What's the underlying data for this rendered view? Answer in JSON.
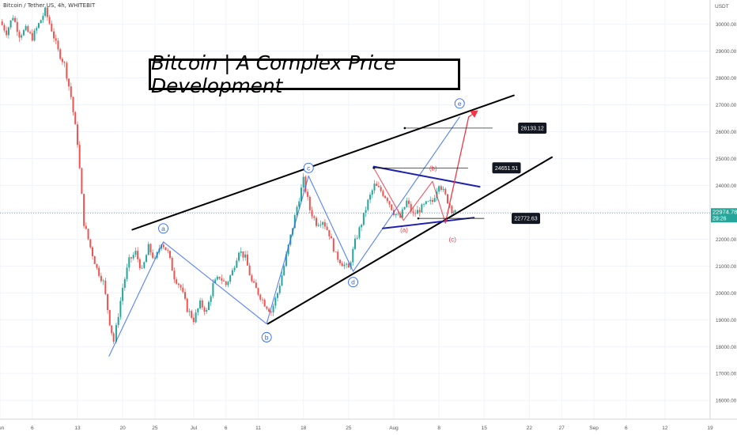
{
  "header": {
    "symbol": "Bitcoin / Tether US, 4h, WHITEBIT",
    "currency": "USDT"
  },
  "title": "Bitcoin | A Complex Price Development",
  "colors": {
    "up": "#26a69a",
    "down": "#ef5350",
    "wave_blue": "#2962ff",
    "channel": "#000000",
    "red_path": "#f23645",
    "navy": "#1e22aa"
  },
  "chart_data": {
    "type": "candlestick",
    "y_ticks": [
      "16000.00",
      "17000.00",
      "18000.00",
      "19000.00",
      "20000.00",
      "21000.00",
      "22000.00",
      "23000.00",
      "24000.00",
      "25000.00",
      "26000.00",
      "27000.00",
      "28000.00",
      "29000.00",
      "30000.00"
    ],
    "x_ticks": [
      {
        "label": "Jun",
        "day": 0
      },
      {
        "label": "6",
        "day": 5
      },
      {
        "label": "13",
        "day": 12
      },
      {
        "label": "20",
        "day": 19
      },
      {
        "label": "25",
        "day": 24
      },
      {
        "label": "Jul",
        "day": 30
      },
      {
        "label": "6",
        "day": 35
      },
      {
        "label": "11",
        "day": 40
      },
      {
        "label": "18",
        "day": 47
      },
      {
        "label": "25",
        "day": 54
      },
      {
        "label": "Aug",
        "day": 61
      },
      {
        "label": "8",
        "day": 68
      },
      {
        "label": "15",
        "day": 75
      },
      {
        "label": "22",
        "day": 82
      },
      {
        "label": "27",
        "day": 87
      },
      {
        "label": "Sep",
        "day": 92
      },
      {
        "label": "6",
        "day": 97
      },
      {
        "label": "12",
        "day": 103
      },
      {
        "label": "19",
        "day": 110
      }
    ],
    "ylim": [
      15300,
      30900
    ],
    "xlim": [
      0,
      110
    ],
    "current_price": {
      "label": "22974.78",
      "timer": "29:26",
      "value": 22974.78
    },
    "price_path": [
      [
        0,
        30100
      ],
      [
        1,
        29700
      ],
      [
        2,
        30300
      ],
      [
        3,
        29600
      ],
      [
        4,
        29800
      ],
      [
        5,
        29500
      ],
      [
        6,
        30000
      ],
      [
        7,
        30500
      ],
      [
        8,
        29800
      ],
      [
        9,
        29000
      ],
      [
        10,
        28500
      ],
      [
        11,
        27300
      ],
      [
        12,
        25600
      ],
      [
        13,
        22600
      ],
      [
        14,
        21700
      ],
      [
        15,
        20900
      ],
      [
        16,
        20400
      ],
      [
        17,
        18900
      ],
      [
        17.6,
        18200
      ],
      [
        18,
        18700
      ],
      [
        19,
        20200
      ],
      [
        20,
        21200
      ],
      [
        21,
        21500
      ],
      [
        22,
        20800
      ],
      [
        23,
        21700
      ],
      [
        24,
        21200
      ],
      [
        25,
        21900
      ],
      [
        26,
        21500
      ],
      [
        27,
        20600
      ],
      [
        28,
        20200
      ],
      [
        29,
        19400
      ],
      [
        30,
        19000
      ],
      [
        31,
        19600
      ],
      [
        32,
        19300
      ],
      [
        33,
        20300
      ],
      [
        34,
        20600
      ],
      [
        35,
        20300
      ],
      [
        36,
        20800
      ],
      [
        37,
        21600
      ],
      [
        38,
        21300
      ],
      [
        39,
        20400
      ],
      [
        40,
        20000
      ],
      [
        41,
        19600
      ],
      [
        42,
        19300
      ],
      [
        43,
        20000
      ],
      [
        44,
        21000
      ],
      [
        45,
        22100
      ],
      [
        46,
        23200
      ],
      [
        47,
        24200
      ],
      [
        48,
        23100
      ],
      [
        49,
        22600
      ],
      [
        50,
        22700
      ],
      [
        51,
        22200
      ],
      [
        52,
        21400
      ],
      [
        53,
        21100
      ],
      [
        54,
        20900
      ],
      [
        55,
        21900
      ],
      [
        56,
        22600
      ],
      [
        57,
        23400
      ],
      [
        58,
        24000
      ],
      [
        59,
        23800
      ],
      [
        60,
        23500
      ],
      [
        61,
        23000
      ],
      [
        62,
        22800
      ],
      [
        63,
        23400
      ],
      [
        64,
        22900
      ],
      [
        65,
        23100
      ],
      [
        66,
        23300
      ],
      [
        67,
        23400
      ],
      [
        68,
        24100
      ],
      [
        69,
        23600
      ],
      [
        70,
        23100
      ],
      [
        70.5,
        22974.78
      ]
    ],
    "wave_labels": [
      {
        "text": "a",
        "day": 25.3,
        "price": 22400,
        "color": "blue"
      },
      {
        "text": "b",
        "day": 41.3,
        "price": 18350,
        "color": "blue"
      },
      {
        "text": "c",
        "day": 47.8,
        "price": 24650,
        "color": "blue"
      },
      {
        "text": "d",
        "day": 54.7,
        "price": 20400,
        "color": "blue"
      },
      {
        "text": "e",
        "day": 71.2,
        "price": 27050,
        "color": "blue"
      },
      {
        "text": "(a)",
        "day": 62.6,
        "price": 22350,
        "color": "red"
      },
      {
        "text": "(b)",
        "day": 67.1,
        "price": 24650,
        "color": "red"
      },
      {
        "text": "(c)",
        "day": 70.1,
        "price": 22000,
        "color": "red"
      }
    ],
    "price_labels": [
      {
        "text": "26133.12",
        "day": 80.5,
        "price": 26133.12
      },
      {
        "text": "24651.51",
        "day": 76.5,
        "price": 24651.51
      },
      {
        "text": "22772.63",
        "day": 79.5,
        "price": 22772.63
      }
    ],
    "channel_upper": [
      [
        20.5,
        22350
      ],
      [
        79.6,
        27350
      ]
    ],
    "channel_lower": [
      [
        41.5,
        18850
      ],
      [
        85.5,
        25050
      ]
    ],
    "blue_path": [
      [
        16.9,
        17650
      ],
      [
        25.3,
        21900
      ],
      [
        41.3,
        18850
      ],
      [
        47.8,
        24350
      ],
      [
        54.7,
        20800
      ],
      [
        71.2,
        26550
      ]
    ],
    "navy_upper": [
      [
        57.9,
        24700
      ],
      [
        74.3,
        23950
      ]
    ],
    "navy_lower": [
      [
        59.3,
        22400
      ],
      [
        73.4,
        22800
      ]
    ],
    "red_abc": [
      [
        57.9,
        24650
      ],
      [
        62.5,
        22700
      ],
      [
        67.0,
        24150
      ],
      [
        69.0,
        22600
      ]
    ],
    "red_projection": [
      [
        69.0,
        22600
      ],
      [
        72.6,
        26550
      ],
      [
        73.8,
        26750
      ]
    ],
    "level_lines": [
      {
        "from": 62.7,
        "to": 76.3,
        "price": 26133.12
      },
      {
        "from": 57.9,
        "to": 72.5,
        "price": 24651.51
      },
      {
        "from": 64.8,
        "to": 75.0,
        "price": 22772.63
      }
    ]
  }
}
